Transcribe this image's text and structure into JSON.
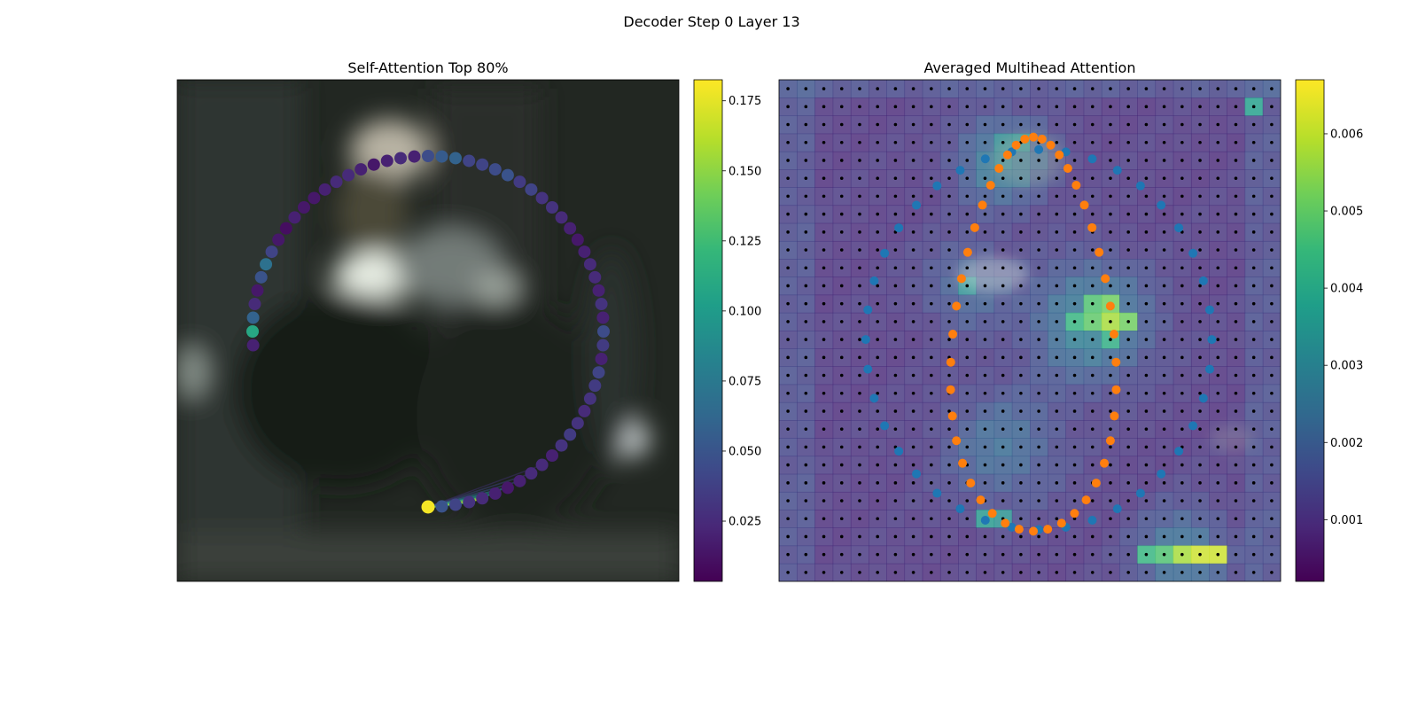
{
  "figure": {
    "suptitle": "Decoder Step 0 Layer 13"
  },
  "colors": {
    "viridis": [
      "#440154",
      "#482878",
      "#3e4989",
      "#31688e",
      "#26828e",
      "#1f9e89",
      "#35b779",
      "#6ece58",
      "#b5de2b",
      "#fde725"
    ],
    "series_blue": "#1f77b4",
    "series_orange": "#ff7f0e",
    "grid_dots": "#000000"
  },
  "chart_data": [
    {
      "type": "scatter",
      "title": "Self-Attention Top 80%",
      "background": "blurred camera image",
      "colorbar": {
        "min": 0.0035,
        "max": 0.1825,
        "ticks": [
          0.025,
          0.05,
          0.075,
          0.1,
          0.125,
          0.15,
          0.175
        ],
        "tick_labels": [
          "0.025",
          "0.050",
          "0.075",
          "0.100",
          "0.125",
          "0.150",
          "0.175"
        ]
      },
      "query_index": 0,
      "points": [
        {
          "angle_deg": 90.0,
          "value": 0.18
        },
        {
          "angle_deg": 85.5,
          "value": 0.05
        },
        {
          "angle_deg": 81.0,
          "value": 0.04
        },
        {
          "angle_deg": 76.5,
          "value": 0.03
        },
        {
          "angle_deg": 72.0,
          "value": 0.025
        },
        {
          "angle_deg": 67.5,
          "value": 0.02
        },
        {
          "angle_deg": 63.0,
          "value": 0.015
        },
        {
          "angle_deg": 58.5,
          "value": 0.02
        },
        {
          "angle_deg": 54.0,
          "value": 0.025
        },
        {
          "angle_deg": 49.5,
          "value": 0.025
        },
        {
          "angle_deg": 45.0,
          "value": 0.02
        },
        {
          "angle_deg": 40.5,
          "value": 0.03
        },
        {
          "angle_deg": 36.0,
          "value": 0.035
        },
        {
          "angle_deg": 31.5,
          "value": 0.03
        },
        {
          "angle_deg": 27.0,
          "value": 0.025
        },
        {
          "angle_deg": 22.5,
          "value": 0.03
        },
        {
          "angle_deg": 18.0,
          "value": 0.035
        },
        {
          "angle_deg": 13.5,
          "value": 0.04
        },
        {
          "angle_deg": 9.0,
          "value": 0.02
        },
        {
          "angle_deg": 4.5,
          "value": 0.035
        },
        {
          "angle_deg": 0.0,
          "value": 0.045
        },
        {
          "angle_deg": -4.5,
          "value": 0.02
        },
        {
          "angle_deg": -9.0,
          "value": 0.03
        },
        {
          "angle_deg": -13.5,
          "value": 0.02
        },
        {
          "angle_deg": -18.0,
          "value": 0.025
        },
        {
          "angle_deg": -22.5,
          "value": 0.025
        },
        {
          "angle_deg": -27.0,
          "value": 0.02
        },
        {
          "angle_deg": -31.5,
          "value": 0.015
        },
        {
          "angle_deg": -36.0,
          "value": 0.02
        },
        {
          "angle_deg": -40.5,
          "value": 0.025
        },
        {
          "angle_deg": -45.0,
          "value": 0.03
        },
        {
          "angle_deg": -49.5,
          "value": 0.03
        },
        {
          "angle_deg": -54.0,
          "value": 0.04
        },
        {
          "angle_deg": -58.5,
          "value": 0.035
        },
        {
          "angle_deg": -63.0,
          "value": 0.05
        },
        {
          "angle_deg": -67.5,
          "value": 0.045
        },
        {
          "angle_deg": -72.0,
          "value": 0.04
        },
        {
          "angle_deg": -76.5,
          "value": 0.04
        },
        {
          "angle_deg": -81.0,
          "value": 0.06
        },
        {
          "angle_deg": -85.5,
          "value": 0.055
        },
        {
          "angle_deg": -90.0,
          "value": 0.045
        },
        {
          "angle_deg": -94.5,
          "value": 0.02
        },
        {
          "angle_deg": -99.0,
          "value": 0.025
        },
        {
          "angle_deg": -103.5,
          "value": 0.02
        },
        {
          "angle_deg": -108.0,
          "value": 0.015
        },
        {
          "angle_deg": -112.5,
          "value": 0.02
        },
        {
          "angle_deg": -117.0,
          "value": 0.025
        },
        {
          "angle_deg": -121.5,
          "value": 0.025
        },
        {
          "angle_deg": -126.0,
          "value": 0.02
        },
        {
          "angle_deg": -130.5,
          "value": 0.015
        },
        {
          "angle_deg": -135.0,
          "value": 0.015
        },
        {
          "angle_deg": -139.5,
          "value": 0.02
        },
        {
          "angle_deg": -144.0,
          "value": 0.01
        },
        {
          "angle_deg": -148.5,
          "value": 0.015
        },
        {
          "angle_deg": -153.0,
          "value": 0.04
        },
        {
          "angle_deg": -157.5,
          "value": 0.07
        },
        {
          "angle_deg": -162.0,
          "value": 0.05
        },
        {
          "angle_deg": -166.5,
          "value": 0.015
        },
        {
          "angle_deg": -171.0,
          "value": 0.025
        },
        {
          "angle_deg": -175.5,
          "value": 0.06
        },
        {
          "angle_deg": 180.0,
          "value": 0.11
        },
        {
          "angle_deg": 175.5,
          "value": 0.02
        }
      ],
      "attention_links": [
        {
          "to_angle_deg": 85.5,
          "weight": 0.05
        },
        {
          "to_angle_deg": 81.0,
          "weight": 0.07
        },
        {
          "to_angle_deg": 76.5,
          "weight": 0.12
        },
        {
          "to_angle_deg": 72.0,
          "weight": 0.16
        },
        {
          "to_angle_deg": 67.5,
          "weight": 0.1
        },
        {
          "to_angle_deg": 63.0,
          "weight": 0.08
        },
        {
          "to_angle_deg": 58.5,
          "weight": 0.05
        },
        {
          "to_angle_deg": 54.0,
          "weight": 0.04
        },
        {
          "to_angle_deg": 49.5,
          "weight": 0.03
        }
      ]
    },
    {
      "type": "heatmap",
      "title": "Averaged Multihead Attention",
      "grid": {
        "rows": 28,
        "cols": 28
      },
      "colorbar": {
        "min": 0.0002,
        "max": 0.0067,
        "ticks": [
          0.001,
          0.002,
          0.003,
          0.004,
          0.005,
          0.006
        ],
        "tick_labels": [
          "0.001",
          "0.002",
          "0.003",
          "0.004",
          "0.005",
          "0.006"
        ]
      },
      "hotspots": [
        {
          "row": 1,
          "col": 26,
          "value": 0.0038
        },
        {
          "row": 3,
          "col": 12,
          "value": 0.0032
        },
        {
          "row": 3,
          "col": 13,
          "value": 0.0034
        },
        {
          "row": 12,
          "col": 17,
          "value": 0.0048
        },
        {
          "row": 12,
          "col": 18,
          "value": 0.0052
        },
        {
          "row": 13,
          "col": 16,
          "value": 0.0044
        },
        {
          "row": 13,
          "col": 17,
          "value": 0.005
        },
        {
          "row": 13,
          "col": 18,
          "value": 0.0058
        },
        {
          "row": 13,
          "col": 19,
          "value": 0.0052
        },
        {
          "row": 14,
          "col": 18,
          "value": 0.0042
        },
        {
          "row": 11,
          "col": 10,
          "value": 0.0033
        },
        {
          "row": 26,
          "col": 20,
          "value": 0.0044
        },
        {
          "row": 26,
          "col": 21,
          "value": 0.0048
        },
        {
          "row": 26,
          "col": 22,
          "value": 0.0058
        },
        {
          "row": 26,
          "col": 23,
          "value": 0.0062
        },
        {
          "row": 26,
          "col": 24,
          "value": 0.0062
        },
        {
          "row": 24,
          "col": 11,
          "value": 0.0036
        },
        {
          "row": 24,
          "col": 12,
          "value": 0.0034
        }
      ],
      "series": [
        {
          "name": "",
          "color": "#1f77b4",
          "shape": "circle",
          "center": [
            14,
            14
          ],
          "radius": 10.5,
          "count": 40
        },
        {
          "name": "",
          "color": "#ff7f0e",
          "shape": "loop",
          "center": [
            14,
            14
          ],
          "radii": [
            5.0,
            11.0
          ],
          "count": 44
        }
      ]
    }
  ]
}
